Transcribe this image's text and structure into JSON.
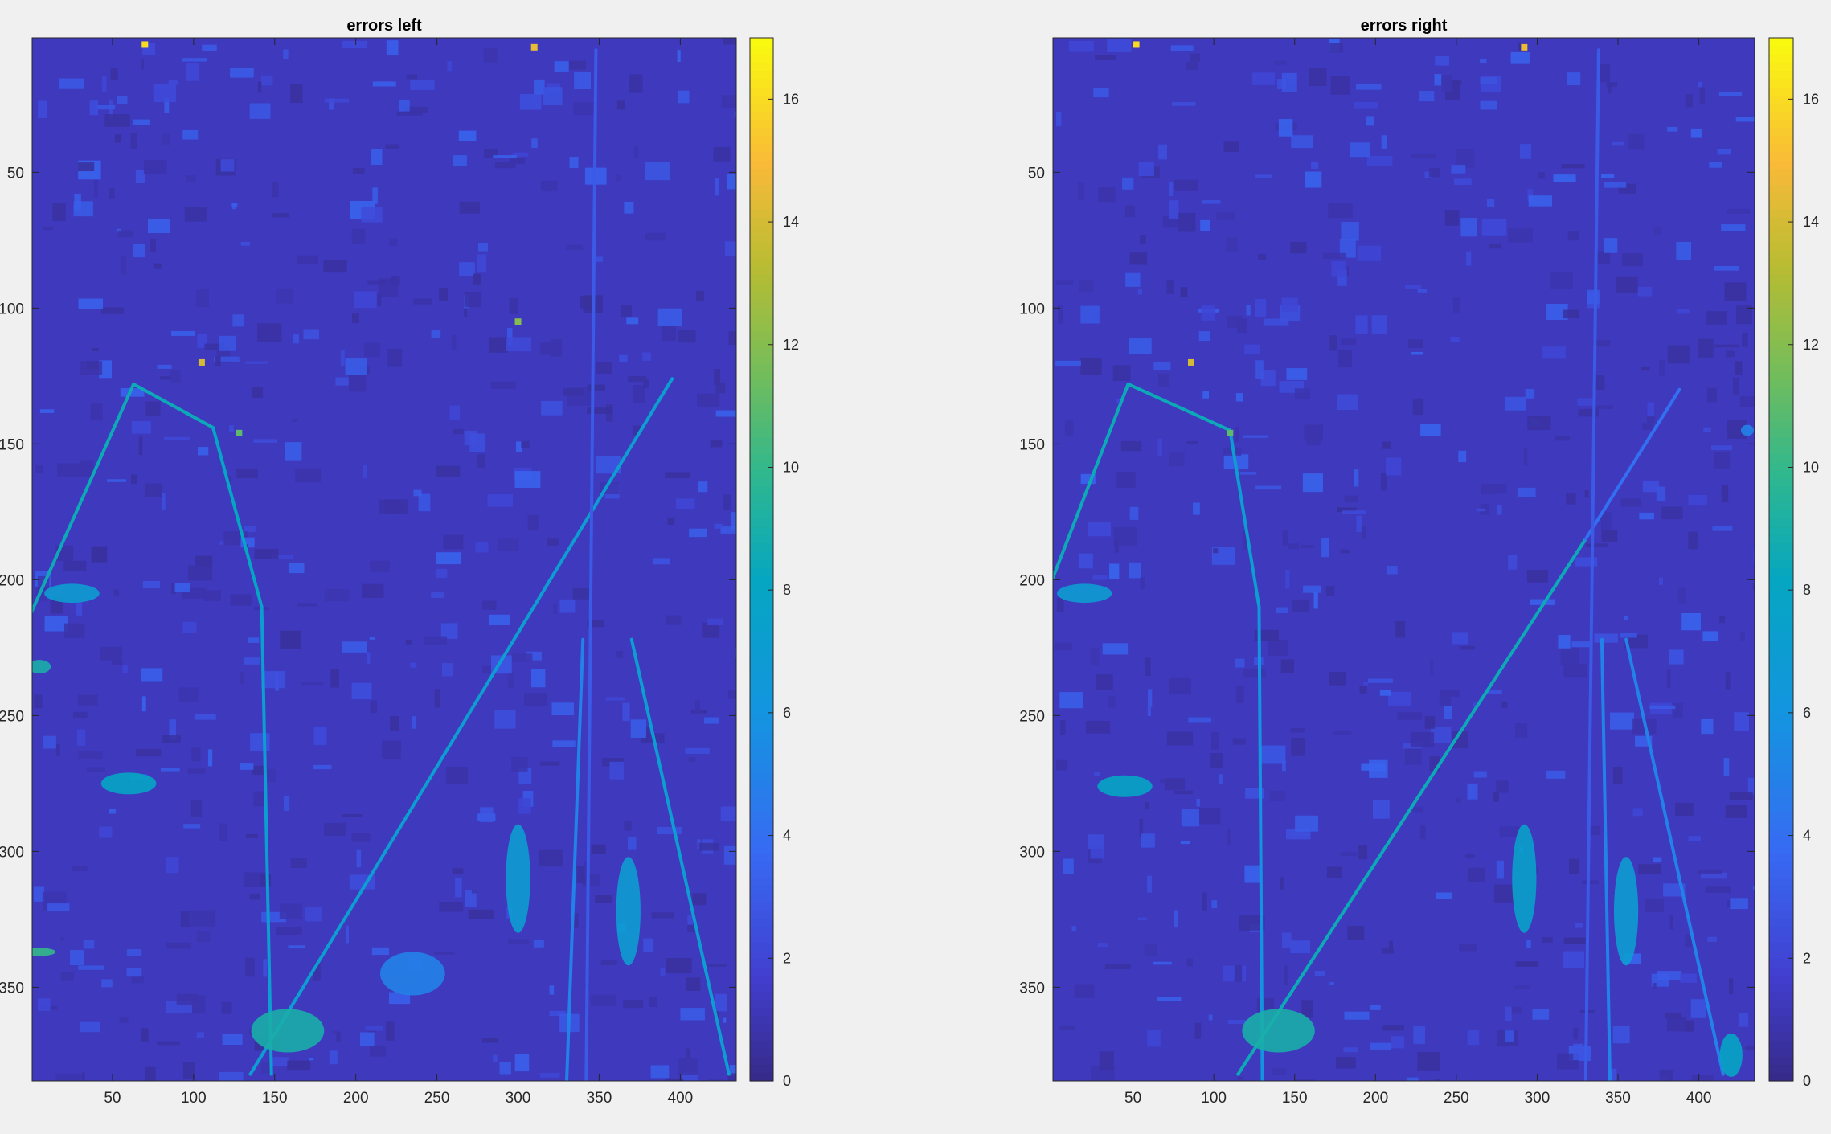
{
  "chart_data": [
    {
      "type": "heatmap",
      "title": "errors left",
      "colormap": "parula",
      "xlim": [
        0.5,
        434.5
      ],
      "ylim": [
        0.5,
        384.5
      ],
      "y_reversed": true,
      "xticks": [
        50,
        100,
        150,
        200,
        250,
        300,
        350,
        400
      ],
      "yticks": [
        50,
        100,
        150,
        200,
        250,
        300,
        350
      ],
      "colorbar": {
        "range": [
          0,
          17
        ],
        "ticks": [
          0,
          2,
          4,
          6,
          8,
          10,
          12,
          14,
          16
        ]
      },
      "base_value": 1.3,
      "features": [
        {
          "kind": "line",
          "from": [
            0,
            212
          ],
          "to": [
            63,
            128
          ],
          "value": 8.5
        },
        {
          "kind": "line",
          "from": [
            63,
            128
          ],
          "to": [
            112,
            144
          ],
          "value": 8.5
        },
        {
          "kind": "line",
          "from": [
            112,
            144
          ],
          "to": [
            142,
            210
          ],
          "value": 8
        },
        {
          "kind": "line",
          "from": [
            142,
            210
          ],
          "to": [
            148,
            382
          ],
          "value": 7
        },
        {
          "kind": "line",
          "from": [
            135,
            382
          ],
          "to": [
            395,
            126
          ],
          "value": 7
        },
        {
          "kind": "line",
          "from": [
            370,
            222
          ],
          "to": [
            430,
            382
          ],
          "value": 7
        },
        {
          "kind": "line",
          "from": [
            340,
            222
          ],
          "to": [
            330,
            384
          ],
          "value": 5
        },
        {
          "kind": "line",
          "from": [
            348,
            5
          ],
          "to": [
            342,
            385
          ],
          "value": 3
        },
        {
          "kind": "blob",
          "at": [
            300,
            310
          ],
          "size": [
            15,
            40
          ],
          "value": 7
        },
        {
          "kind": "blob",
          "at": [
            368,
            322
          ],
          "size": [
            15,
            40
          ],
          "value": 7
        },
        {
          "kind": "blob",
          "at": [
            158,
            366
          ],
          "size": [
            45,
            16
          ],
          "value": 9
        },
        {
          "kind": "blob",
          "at": [
            60,
            275
          ],
          "size": [
            34,
            8
          ],
          "value": 8
        },
        {
          "kind": "blob",
          "at": [
            25,
            205
          ],
          "size": [
            34,
            7
          ],
          "value": 7
        },
        {
          "kind": "blob",
          "at": [
            5,
            232
          ],
          "size": [
            14,
            5
          ],
          "value": 9
        },
        {
          "kind": "blob",
          "at": [
            5,
            337
          ],
          "size": [
            20,
            3
          ],
          "value": 10
        },
        {
          "kind": "blob",
          "at": [
            235,
            345
          ],
          "size": [
            40,
            16
          ],
          "value": 5
        },
        {
          "kind": "point",
          "at": [
            70,
            3
          ],
          "value": 16
        },
        {
          "kind": "point",
          "at": [
            310,
            4
          ],
          "value": 14.5
        },
        {
          "kind": "point",
          "at": [
            105,
            120
          ],
          "value": 14
        },
        {
          "kind": "point",
          "at": [
            128,
            146
          ],
          "value": 11
        },
        {
          "kind": "point",
          "at": [
            300,
            105
          ],
          "value": 12
        }
      ]
    },
    {
      "type": "heatmap",
      "title": "errors right",
      "colormap": "parula",
      "xlim": [
        0.5,
        434.5
      ],
      "ylim": [
        0.5,
        384.5
      ],
      "y_reversed": true,
      "xticks": [
        50,
        100,
        150,
        200,
        250,
        300,
        350,
        400
      ],
      "yticks": [
        50,
        100,
        150,
        200,
        250,
        300,
        350
      ],
      "colorbar": {
        "range": [
          0,
          17
        ],
        "ticks": [
          0,
          2,
          4,
          6,
          8,
          10,
          12,
          14,
          16
        ]
      },
      "base_value": 1.3,
      "features": [
        {
          "kind": "line",
          "from": [
            0,
            200
          ],
          "to": [
            47,
            128
          ],
          "value": 8.5
        },
        {
          "kind": "line",
          "from": [
            47,
            128
          ],
          "to": [
            110,
            145
          ],
          "value": 8.5
        },
        {
          "kind": "line",
          "from": [
            110,
            145
          ],
          "to": [
            128,
            210
          ],
          "value": 7
        },
        {
          "kind": "line",
          "from": [
            128,
            210
          ],
          "to": [
            130,
            384
          ],
          "value": 6
        },
        {
          "kind": "line",
          "from": [
            115,
            382
          ],
          "to": [
            330,
            185
          ],
          "value": 8.5
        },
        {
          "kind": "line",
          "from": [
            330,
            185
          ],
          "to": [
            388,
            130
          ],
          "value": 4
        },
        {
          "kind": "line",
          "from": [
            340,
            222
          ],
          "to": [
            345,
            384
          ],
          "value": 5
        },
        {
          "kind": "line",
          "from": [
            355,
            222
          ],
          "to": [
            415,
            382
          ],
          "value": 5
        },
        {
          "kind": "line",
          "from": [
            338,
            5
          ],
          "to": [
            330,
            385
          ],
          "value": 3
        },
        {
          "kind": "blob",
          "at": [
            292,
            310
          ],
          "size": [
            15,
            40
          ],
          "value": 7.5
        },
        {
          "kind": "blob",
          "at": [
            355,
            322
          ],
          "size": [
            15,
            40
          ],
          "value": 7
        },
        {
          "kind": "blob",
          "at": [
            420,
            375
          ],
          "size": [
            14,
            16
          ],
          "value": 8
        },
        {
          "kind": "blob",
          "at": [
            140,
            366
          ],
          "size": [
            45,
            16
          ],
          "value": 9
        },
        {
          "kind": "blob",
          "at": [
            45,
            276
          ],
          "size": [
            34,
            8
          ],
          "value": 8
        },
        {
          "kind": "blob",
          "at": [
            20,
            205
          ],
          "size": [
            34,
            7
          ],
          "value": 7
        },
        {
          "kind": "blob",
          "at": [
            430,
            145
          ],
          "size": [
            8,
            4
          ],
          "value": 5
        },
        {
          "kind": "point",
          "at": [
            52,
            3
          ],
          "value": 16
        },
        {
          "kind": "point",
          "at": [
            292,
            4
          ],
          "value": 14.5
        },
        {
          "kind": "point",
          "at": [
            86,
            120
          ],
          "value": 14
        },
        {
          "kind": "point",
          "at": [
            110,
            146
          ],
          "value": 11
        }
      ]
    }
  ]
}
